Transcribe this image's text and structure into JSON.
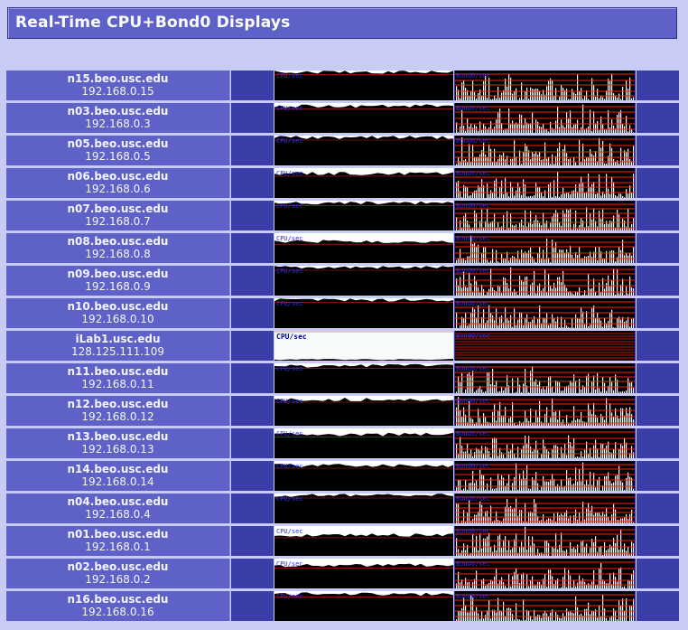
{
  "page": {
    "title": "Real-Time CPU+Bond0 Displays"
  },
  "graph_labels": {
    "cpu": "CPU/sec",
    "bond": "Bond0/sec"
  },
  "colors": {
    "header_bg": "#5e62c8",
    "page_bg": "#c8cbf4",
    "host_cell_bg": "#5e62c8",
    "spacer_bg": "#3b3ea8",
    "graph_bg": "#000000",
    "bond_line": "#ff2200",
    "label_blue": "#2233ff"
  },
  "nodes": [
    {
      "name": "n15.beo.usc.edu",
      "ip": "192.168.0.15",
      "cpu_load": 0.05,
      "cpu_theme": "dark"
    },
    {
      "name": "n03.beo.usc.edu",
      "ip": "192.168.0.3",
      "cpu_load": 0.1,
      "cpu_theme": "dark"
    },
    {
      "name": "n05.beo.usc.edu",
      "ip": "192.168.0.5",
      "cpu_load": 0.06,
      "cpu_theme": "dark"
    },
    {
      "name": "n06.beo.usc.edu",
      "ip": "192.168.0.6",
      "cpu_load": 0.18,
      "cpu_theme": "dark"
    },
    {
      "name": "n07.beo.usc.edu",
      "ip": "192.168.0.7",
      "cpu_load": 0.08,
      "cpu_theme": "dark"
    },
    {
      "name": "n08.beo.usc.edu",
      "ip": "192.168.0.8",
      "cpu_load": 0.28,
      "cpu_theme": "dark"
    },
    {
      "name": "n09.beo.usc.edu",
      "ip": "192.168.0.9",
      "cpu_load": 0.06,
      "cpu_theme": "dark"
    },
    {
      "name": "n10.beo.usc.edu",
      "ip": "192.168.0.10",
      "cpu_load": 0.05,
      "cpu_theme": "dark"
    },
    {
      "name": "iLab1.usc.edu",
      "ip": "128.125.111.109",
      "cpu_load": 0.85,
      "cpu_theme": "light"
    },
    {
      "name": "n11.beo.usc.edu",
      "ip": "192.168.0.11",
      "cpu_load": 0.08,
      "cpu_theme": "dark"
    },
    {
      "name": "n12.beo.usc.edu",
      "ip": "192.168.0.12",
      "cpu_load": 0.12,
      "cpu_theme": "dark"
    },
    {
      "name": "n13.beo.usc.edu",
      "ip": "192.168.0.13",
      "cpu_load": 0.2,
      "cpu_theme": "dark"
    },
    {
      "name": "n14.beo.usc.edu",
      "ip": "192.168.0.14",
      "cpu_load": 0.15,
      "cpu_theme": "dark"
    },
    {
      "name": "n04.beo.usc.edu",
      "ip": "192.168.0.4",
      "cpu_load": 0.06,
      "cpu_theme": "dark"
    },
    {
      "name": "n01.beo.usc.edu",
      "ip": "192.168.0.1",
      "cpu_load": 0.3,
      "cpu_theme": "dark"
    },
    {
      "name": "n02.beo.usc.edu",
      "ip": "192.168.0.2",
      "cpu_load": 0.22,
      "cpu_theme": "dark"
    },
    {
      "name": "n16.beo.usc.edu",
      "ip": "192.168.0.16",
      "cpu_load": 0.1,
      "cpu_theme": "dark"
    }
  ]
}
